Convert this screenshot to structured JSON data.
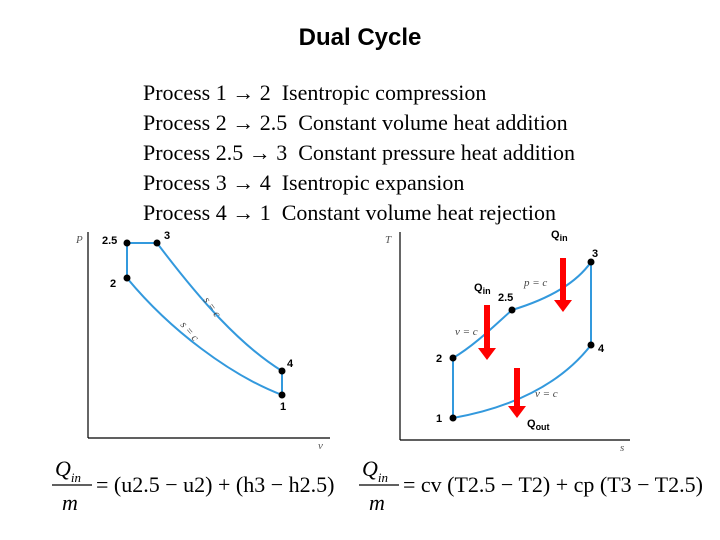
{
  "title": "Dual Cycle",
  "processes": [
    {
      "from": "1",
      "to": "2",
      "description": "Isentropic compression"
    },
    {
      "from": "2",
      "to": "2.5",
      "description": "Constant volume heat addition"
    },
    {
      "from": "2.5",
      "to": "3",
      "description": "Constant pressure heat addition"
    },
    {
      "from": "3",
      "to": "4",
      "description": "Isentropic expansion"
    },
    {
      "from": "4",
      "to": "1",
      "description": "Constant volume heat rejection"
    }
  ],
  "pv_diagram": {
    "y_axis": "P",
    "x_axis": "v",
    "points": [
      "2.5",
      "3",
      "2",
      "4",
      "1"
    ],
    "curve_labels": [
      "s = c",
      "s = c"
    ]
  },
  "ts_diagram": {
    "y_axis": "T",
    "x_axis": "s",
    "points": [
      "3",
      "2.5",
      "4",
      "2",
      "1"
    ],
    "heat_in_label": "Q",
    "heat_in_sub": "in",
    "heat_out_label": "Q",
    "heat_out_sub": "out",
    "curve_labels": [
      "p = c",
      "v = c",
      "v = c"
    ],
    "arrow_color": "#ff0000",
    "curve_color": "#3399dd"
  },
  "equations": {
    "left_numerator": "Q",
    "left_numerator_sub": "in",
    "left_denominator": "m",
    "left_rhs": "= (u2.5 − u2) + (h3 − h2.5)",
    "right_numerator": "Q",
    "right_numerator_sub": "in",
    "right_denominator": "m",
    "right_rhs": "= cv (T2.5 − T2) + cp (T3 − T2.5)"
  }
}
